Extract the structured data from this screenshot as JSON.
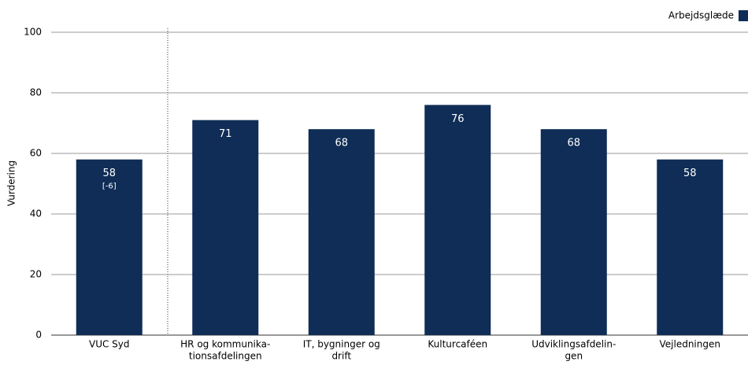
{
  "chart_data": {
    "type": "bar",
    "y_label": "Vurdering",
    "categories": [
      [
        "VUC Syd"
      ],
      [
        "HR og kommunika-",
        "tionsafdelingen"
      ],
      [
        "IT, bygninger og",
        "drift"
      ],
      [
        "Kulturcaféen"
      ],
      [
        "Udviklingsafdelin-",
        "gen"
      ],
      [
        "Vejledningen"
      ]
    ],
    "series": [
      {
        "name": "Arbejdsglæde",
        "color": "#0f2d56",
        "values": [
          58,
          71,
          68,
          76,
          68,
          58
        ]
      }
    ],
    "annotations": [
      {
        "category": 0,
        "text": "[-6]"
      }
    ],
    "ylim": [
      0,
      100
    ],
    "yticks": [
      0,
      20,
      40,
      60,
      80,
      100
    ],
    "grid": true,
    "legend": "top-right"
  }
}
